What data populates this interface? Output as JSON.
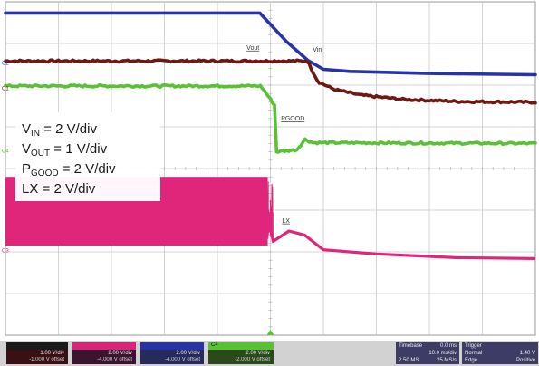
{
  "chart_data": {
    "type": "line",
    "title": "",
    "xlabel": "",
    "ylabel": "",
    "grid": true,
    "divisions": {
      "x": 10,
      "y": 8
    },
    "xlim": [
      0,
      10
    ],
    "ylim": [
      0,
      8
    ],
    "series": [
      {
        "name": "VIN",
        "label": "VIN",
        "color": "#2634a6",
        "x": [
          0,
          4.8,
          5.3,
          5.7,
          6.0,
          6.5,
          8.0,
          10.0
        ],
        "y": [
          7.73,
          7.73,
          7.05,
          6.6,
          6.38,
          6.33,
          6.28,
          6.25
        ]
      },
      {
        "name": "VOUT",
        "label": "Vout",
        "color": "#6e1812",
        "x": [
          0,
          5.7,
          5.75,
          5.9,
          6.2,
          6.7,
          7.5,
          8.5,
          10.0
        ],
        "y": [
          6.58,
          6.58,
          6.45,
          6.08,
          5.9,
          5.76,
          5.66,
          5.61,
          5.59
        ],
        "noisy": true
      },
      {
        "name": "PGOOD",
        "label": "PGOOD",
        "color": "#58c234",
        "x": [
          0,
          4.82,
          5.08,
          5.1,
          5.5,
          5.65,
          5.8,
          10.0
        ],
        "y": [
          5.98,
          5.98,
          5.52,
          4.4,
          4.45,
          4.7,
          4.62,
          4.6
        ],
        "noisy": true
      },
      {
        "name": "LX",
        "label": "LX",
        "color": "#e0267a",
        "x": [
          0,
          4.95,
          5.05,
          5.35,
          5.65,
          6.0,
          7.0,
          8.5,
          10.0
        ],
        "envelope_low": 2.15,
        "envelope_high": 3.8,
        "y": [
          3.0,
          3.0,
          2.25,
          2.5,
          2.4,
          2.05,
          1.95,
          1.86,
          1.84
        ]
      }
    ],
    "trace_labels": [
      {
        "text": "Vout",
        "x": 4.55,
        "y": 6.85
      },
      {
        "text": "Vin",
        "x": 5.8,
        "y": 6.8
      },
      {
        "text": "PGOOD",
        "x": 5.2,
        "y": 5.15
      },
      {
        "text": "LX",
        "x": 5.22,
        "y": 2.7
      }
    ],
    "legend": {
      "placement": "left",
      "lines": [
        {
          "main": "V",
          "sub": "IN",
          "rest": " = 2 V/div"
        },
        {
          "main": "V",
          "sub": "OUT",
          "rest": " = 1 V/div"
        },
        {
          "main": "P",
          "sub": "GOOD",
          "rest": " = 2 V/div"
        },
        {
          "main": "LX",
          "sub": "",
          "rest": " = 2 V/div"
        }
      ]
    },
    "channel_markers": [
      "C2",
      "C1",
      "C4",
      "C3"
    ]
  },
  "status_bar": {
    "channels": [
      {
        "name": "C1",
        "color": "#6e1812",
        "scale": "1.00 V/div",
        "offset": "-1.000 V offset"
      },
      {
        "name": "C2",
        "color": "#d8257a",
        "scale": "2.00 V/div",
        "offset": "-4.000 V offset"
      },
      {
        "name": "C3",
        "color": "#2634a6",
        "scale": "2.00 V/div",
        "offset": "-4.000 V offset"
      },
      {
        "name": "C4",
        "color": "#58c234",
        "scale": "2.00 V/div",
        "offset": "-2.000 V offset"
      }
    ],
    "timebase": {
      "label": "Timebase",
      "delay": "0.0 ms",
      "div": "10.0 ms/div",
      "samples": "2.50 MS",
      "rate": "25 MS/s"
    },
    "trigger": {
      "label": "Trigger",
      "mode": "Normal",
      "level": "1.40 V",
      "type": "Edge",
      "slope": "Positive"
    }
  }
}
